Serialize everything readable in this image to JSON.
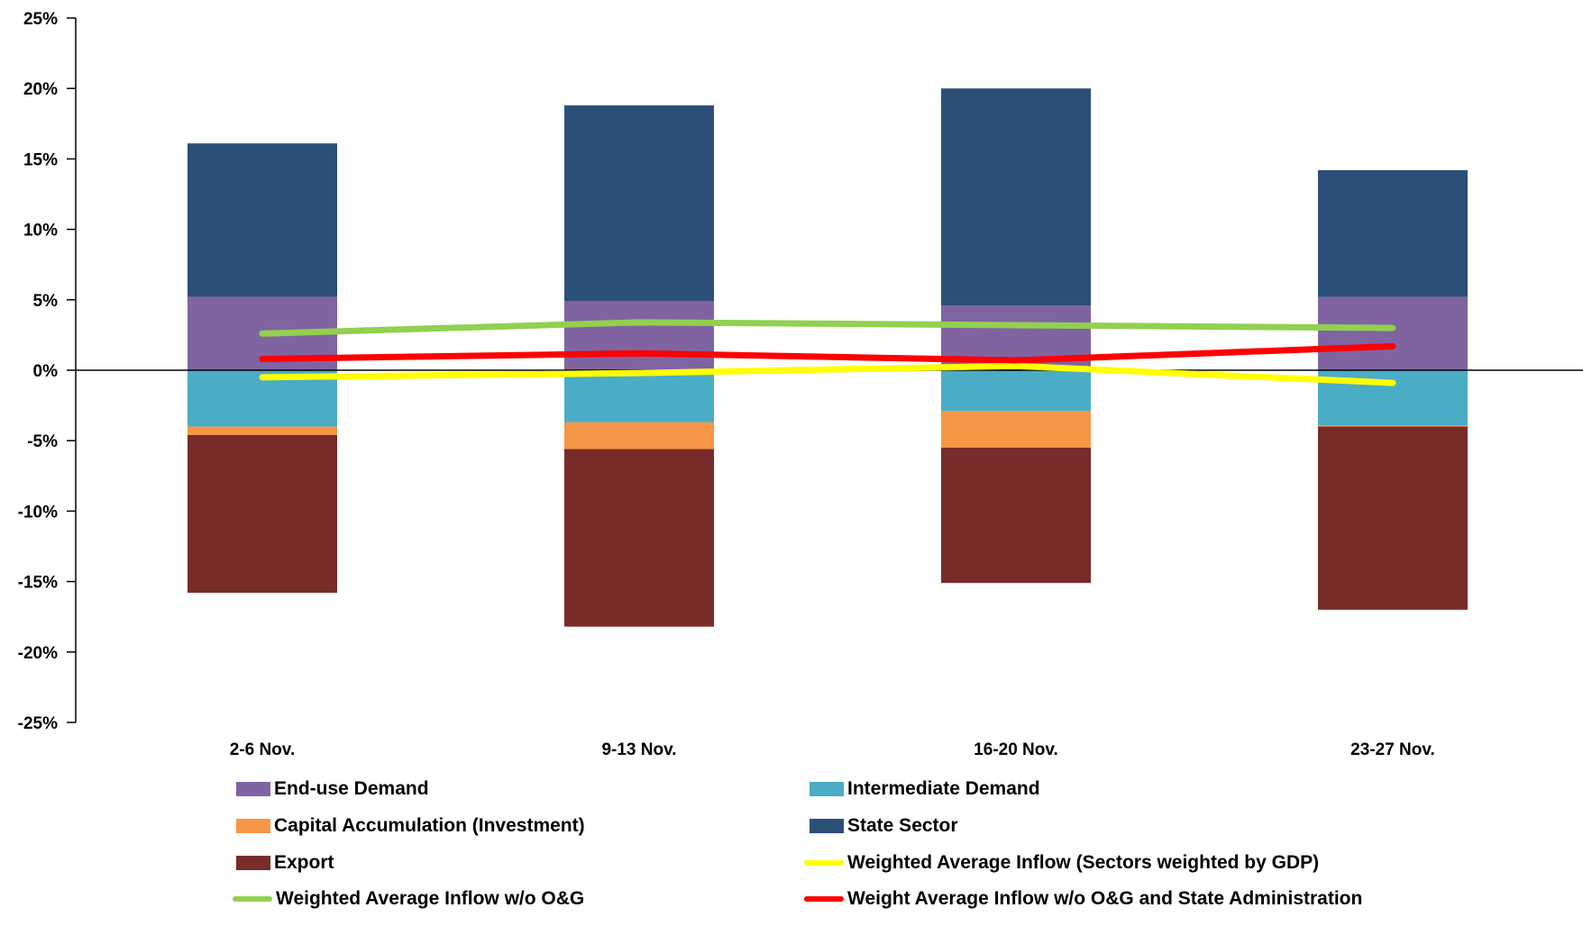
{
  "chart_data": {
    "type": "bar",
    "stacked": true,
    "categories": [
      "2-6 Nov.",
      "9-13 Nov.",
      "16-20 Nov.",
      "23-27 Nov."
    ],
    "ylim": [
      -25,
      25
    ],
    "yticks": [
      -25,
      -20,
      -15,
      -10,
      -5,
      0,
      5,
      10,
      15,
      20,
      25
    ],
    "ytick_labels": [
      "-25%",
      "-20%",
      "-15%",
      "-10%",
      "-5%",
      "0%",
      "5%",
      "10%",
      "15%",
      "20%",
      "25%"
    ],
    "bar_series": [
      {
        "name": "End-use Demand",
        "color": "#8064a2",
        "values": [
          5.2,
          4.9,
          4.6,
          5.2
        ]
      },
      {
        "name": "State Sector",
        "color": "#2c4f77",
        "values": [
          10.9,
          13.9,
          15.4,
          9.0
        ]
      },
      {
        "name": "Intermediate Demand",
        "color": "#4bacc6",
        "values": [
          -4.0,
          -3.7,
          -2.9,
          -3.9
        ]
      },
      {
        "name": "Capital Accumulation (Investment)",
        "color": "#f79646",
        "values": [
          -0.6,
          -1.9,
          -2.6,
          -0.1
        ]
      },
      {
        "name": "Export",
        "color": "#772c2a",
        "values": [
          -11.2,
          -12.6,
          -9.6,
          -13.0
        ]
      }
    ],
    "line_series": [
      {
        "name": "Weighted Average Inflow (Sectors weighted by GDP)",
        "color": "#ffff00",
        "values": [
          -0.5,
          -0.2,
          0.3,
          -0.9
        ]
      },
      {
        "name": "Weighted Average Inflow w/o O&G",
        "color": "#92d050",
        "values": [
          2.6,
          3.4,
          3.2,
          3.0
        ]
      },
      {
        "name": "Weight Average Inflow w/o O&G and State Administration",
        "color": "#ff0000",
        "values": [
          0.8,
          1.2,
          0.7,
          1.7
        ]
      }
    ],
    "legend": {
      "placement": "bottom",
      "items": [
        {
          "label": "End-use Demand",
          "kind": "box",
          "color": "#8064a2"
        },
        {
          "label": "Intermediate Demand",
          "kind": "box",
          "color": "#4bacc6"
        },
        {
          "label": "Capital Accumulation (Investment)",
          "kind": "box",
          "color": "#f79646"
        },
        {
          "label": "State Sector",
          "kind": "box",
          "color": "#2c4f77"
        },
        {
          "label": "Export",
          "kind": "box",
          "color": "#772c2a"
        },
        {
          "label": "Weighted Average Inflow (Sectors weighted by GDP)",
          "kind": "line",
          "color": "#ffff00"
        },
        {
          "label": "Weighted Average Inflow w/o O&G",
          "kind": "line",
          "color": "#92d050"
        },
        {
          "label": "Weight Average Inflow w/o O&G and State Administration",
          "kind": "line",
          "color": "#ff0000"
        }
      ]
    }
  }
}
